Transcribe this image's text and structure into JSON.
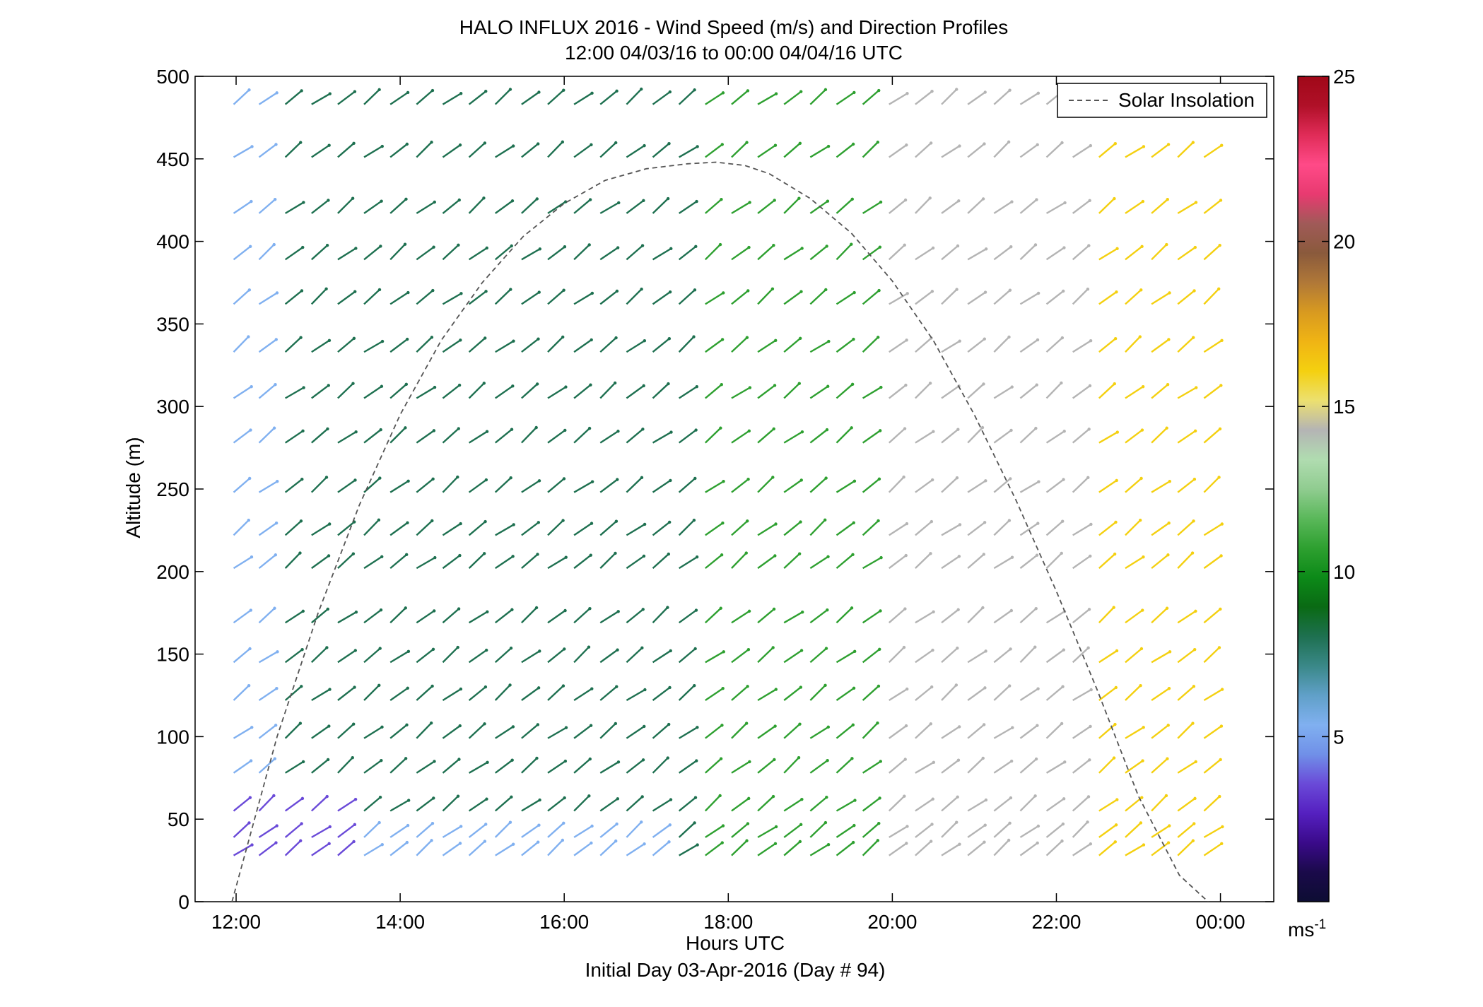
{
  "chart_data": {
    "type": "quiver",
    "title": "HALO INFLUX 2016 - Wind Speed (m/s) and Direction Profiles",
    "subtitle": "12:00 04/03/16 to 00:00 04/04/16  UTC",
    "xlabel": "Hours UTC",
    "xlabel2": "Initial Day 03-Apr-2016 (Day # 94)",
    "ylabel": "Altitude (m)",
    "xlim": [
      11.5,
      24.65
    ],
    "ylim": [
      0,
      500
    ],
    "xticks": [
      12,
      14,
      16,
      18,
      20,
      22,
      24
    ],
    "xtick_labels": [
      "12:00",
      "14:00",
      "16:00",
      "18:00",
      "20:00",
      "22:00",
      "00:00"
    ],
    "yticks": [
      0,
      50,
      100,
      150,
      200,
      250,
      300,
      350,
      400,
      450,
      500
    ],
    "ytick_labels": [
      "0",
      "50",
      "100",
      "150",
      "200",
      "250",
      "300",
      "350",
      "400",
      "450",
      "500"
    ],
    "grid": false,
    "legend": {
      "position": "top-right",
      "entries": [
        "Solar Insolation"
      ]
    },
    "colorbar": {
      "min": 0,
      "max": 25,
      "ticks": [
        5,
        10,
        15,
        20,
        25
      ],
      "tick_labels": [
        "5",
        "10",
        "15",
        "20",
        "25"
      ],
      "unit_label": "ms",
      "unit_exponent": "-1",
      "colors": [
        "#0d0d33",
        "#1a0a4a",
        "#3a0a8a",
        "#5520c0",
        "#6a4ad8",
        "#7090e8",
        "#80b0f0",
        "#60a0c8",
        "#3a8888",
        "#1e7050",
        "#0a6a14",
        "#0c8a18",
        "#2ea030",
        "#5ab85a",
        "#90cc90",
        "#b0dcb0",
        "#b4b4b4",
        "#ece070",
        "#f4d010",
        "#f0b414",
        "#d89a20",
        "#b07838",
        "#8a5a3c",
        "#a05a58",
        "#e83a70",
        "#ff4a88",
        "#e02c58",
        "#b01028",
        "#a00818"
      ]
    },
    "insolation_curve": {
      "name": "Solar Insolation",
      "x": [
        11.95,
        12.5,
        13.0,
        13.5,
        14.0,
        14.5,
        15.0,
        15.5,
        16.0,
        16.5,
        17.0,
        17.5,
        17.85,
        18.2,
        18.5,
        19.0,
        19.5,
        20.0,
        20.5,
        21.0,
        21.5,
        22.0,
        22.5,
        23.0,
        23.5,
        23.85
      ],
      "y": [
        0,
        100,
        175,
        240,
        295,
        340,
        375,
        403,
        423,
        437,
        444,
        447,
        448,
        446,
        441,
        426,
        405,
        376,
        340,
        295,
        244,
        188,
        128,
        64,
        16,
        0
      ]
    },
    "columns_x": [
      11.97,
      12.28,
      12.6,
      12.92,
      13.24,
      13.56,
      13.88,
      14.2,
      14.52,
      14.84,
      15.16,
      15.48,
      15.8,
      16.12,
      16.44,
      16.76,
      17.08,
      17.4,
      17.72,
      18.04,
      18.36,
      18.68,
      19.0,
      19.32,
      19.64,
      19.96,
      20.28,
      20.6,
      20.92,
      21.24,
      21.56,
      21.88,
      22.2,
      22.52,
      22.84,
      23.16,
      23.48,
      23.8
    ],
    "levels_m": [
      28,
      39,
      55,
      78,
      99,
      122,
      145,
      169,
      202,
      222,
      248,
      278,
      305,
      333,
      362,
      389,
      417,
      451,
      483
    ],
    "speed_bands": [
      {
        "x_from": 11.97,
        "x_to": 13.3,
        "levels_below_m": 60,
        "speed": 3.5
      },
      {
        "x_from": 13.3,
        "x_to": 17.3,
        "levels_below_m": 40,
        "speed": 5.0
      },
      {
        "x_from": 11.97,
        "x_to": 12.3,
        "levels_below_m": 500,
        "speed": 5.2
      },
      {
        "x_from": 12.3,
        "x_to": 17.5,
        "levels_below_m": 500,
        "speed": 8.0
      },
      {
        "x_from": 17.5,
        "x_to": 19.7,
        "levels_below_m": 500,
        "speed": 10.5
      },
      {
        "x_from": 19.7,
        "x_to": 22.5,
        "levels_below_m": 500,
        "speed": 14.0
      },
      {
        "x_from": 22.5,
        "x_to": 24.0,
        "levels_below_m": 500,
        "speed": 16.5
      }
    ],
    "direction_note": "Arrows point toward upper right (wind from southwest)"
  }
}
